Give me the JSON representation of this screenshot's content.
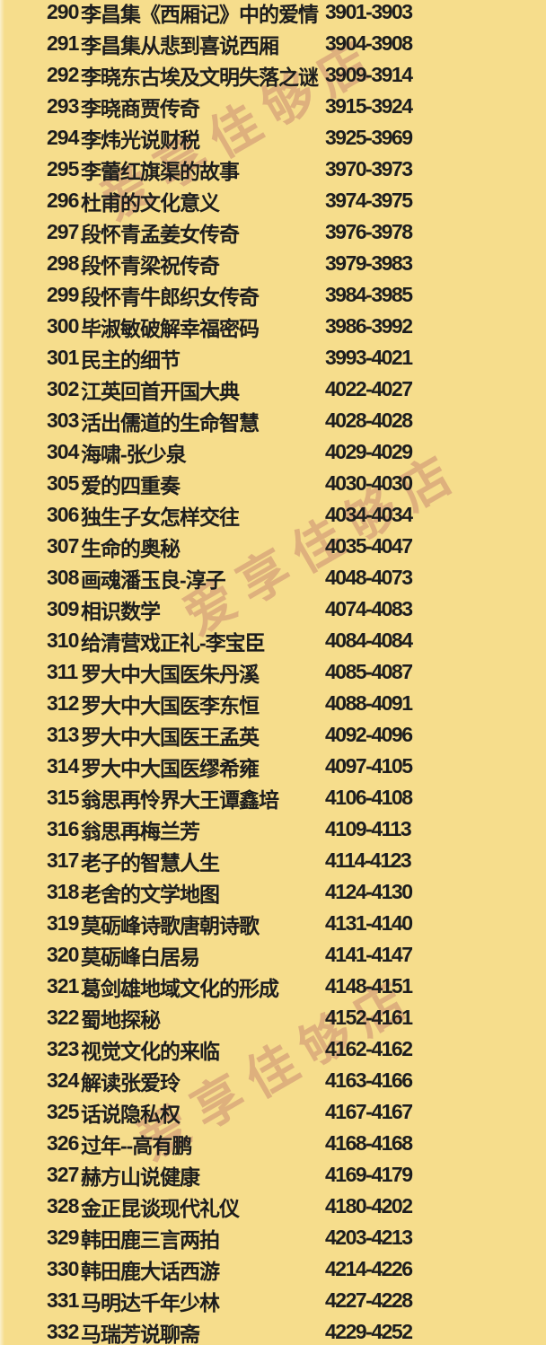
{
  "page": {
    "background_color": "#f6dd8c",
    "text_color": "#1d1d1d"
  },
  "watermark": {
    "text": "爱享佳够店",
    "color": "#bc7268"
  },
  "list": {
    "rows": [
      {
        "num": "290",
        "title": "李昌集《西厢记》中的爱情",
        "range": "3901-3903"
      },
      {
        "num": "291",
        "title": "李昌集从悲到喜说西厢",
        "range": "3904-3908"
      },
      {
        "num": "292",
        "title": "李晓东古埃及文明失落之谜",
        "range": "3909-3914"
      },
      {
        "num": "293",
        "title": "李晓商贾传奇",
        "range": "3915-3924"
      },
      {
        "num": "294",
        "title": "李炜光说财税",
        "range": "3925-3969"
      },
      {
        "num": "295",
        "title": "李蕾红旗渠的故事",
        "range": "3970-3973"
      },
      {
        "num": "296",
        "title": "杜甫的文化意义",
        "range": "3974-3975"
      },
      {
        "num": "297",
        "title": "段怀青孟姜女传奇",
        "range": "3976-3978"
      },
      {
        "num": "298",
        "title": "段怀青梁祝传奇",
        "range": "3979-3983"
      },
      {
        "num": "299",
        "title": "段怀青牛郎织女传奇",
        "range": "3984-3985"
      },
      {
        "num": "300",
        "title": "毕淑敏破解幸福密码",
        "range": "3986-3992"
      },
      {
        "num": "301",
        "title": "民主的细节",
        "range": "3993-4021"
      },
      {
        "num": "302",
        "title": "江英回首开国大典",
        "range": "4022-4027"
      },
      {
        "num": "303",
        "title": "活出儒道的生命智慧",
        "range": "4028-4028"
      },
      {
        "num": "304",
        "title": "海啸-张少泉",
        "range": "4029-4029"
      },
      {
        "num": "305",
        "title": "爱的四重奏",
        "range": "4030-4030"
      },
      {
        "num": "306",
        "title": "独生子女怎样交往",
        "range": "4034-4034"
      },
      {
        "num": "307",
        "title": "生命的奥秘",
        "range": "4035-4047"
      },
      {
        "num": "308",
        "title": "画魂潘玉良-淳子",
        "range": "4048-4073"
      },
      {
        "num": "309",
        "title": "相识数学",
        "range": "4074-4083"
      },
      {
        "num": "310",
        "title": "给清营戏正礼-李宝臣",
        "range": "4084-4084"
      },
      {
        "num": "311",
        "title": "罗大中大国医朱丹溪",
        "range": "4085-4087"
      },
      {
        "num": "312",
        "title": "罗大中大国医李东恒",
        "range": "4088-4091"
      },
      {
        "num": "313",
        "title": "罗大中大国医王孟英",
        "range": "4092-4096"
      },
      {
        "num": "314",
        "title": "罗大中大国医缪希雍",
        "range": "4097-4105"
      },
      {
        "num": "315",
        "title": "翁思再怜界大王谭鑫培",
        "range": "4106-4108"
      },
      {
        "num": "316",
        "title": "翁思再梅兰芳",
        "range": "4109-4113"
      },
      {
        "num": "317",
        "title": "老子的智慧人生",
        "range": "4114-4123"
      },
      {
        "num": "318",
        "title": "老舍的文学地图",
        "range": "4124-4130"
      },
      {
        "num": "319",
        "title": "莫砺峰诗歌唐朝诗歌",
        "range": "4131-4140"
      },
      {
        "num": "320",
        "title": "莫砺峰白居易",
        "range": "4141-4147"
      },
      {
        "num": "321",
        "title": "葛剑雄地域文化的形成",
        "range": "4148-4151"
      },
      {
        "num": "322",
        "title": "蜀地探秘",
        "range": "4152-4161"
      },
      {
        "num": "323",
        "title": "视觉文化的来临",
        "range": "4162-4162"
      },
      {
        "num": "324",
        "title": "解读张爱玲",
        "range": "4163-4166"
      },
      {
        "num": "325",
        "title": "话说隐私权",
        "range": "4167-4167"
      },
      {
        "num": "326",
        "title": "过年--高有鹏",
        "range": "4168-4168"
      },
      {
        "num": "327",
        "title": "赫方山说健康",
        "range": "4169-4179"
      },
      {
        "num": "328",
        "title": "金正昆谈现代礼仪",
        "range": "4180-4202"
      },
      {
        "num": "329",
        "title": "韩田鹿三言两拍",
        "range": "4203-4213"
      },
      {
        "num": "330",
        "title": "韩田鹿大话西游",
        "range": "4214-4226"
      },
      {
        "num": "331",
        "title": "马明达千年少林",
        "range": "4227-4228"
      },
      {
        "num": "332",
        "title": "马瑞芳说聊斋",
        "range": "4229-4252"
      }
    ]
  }
}
